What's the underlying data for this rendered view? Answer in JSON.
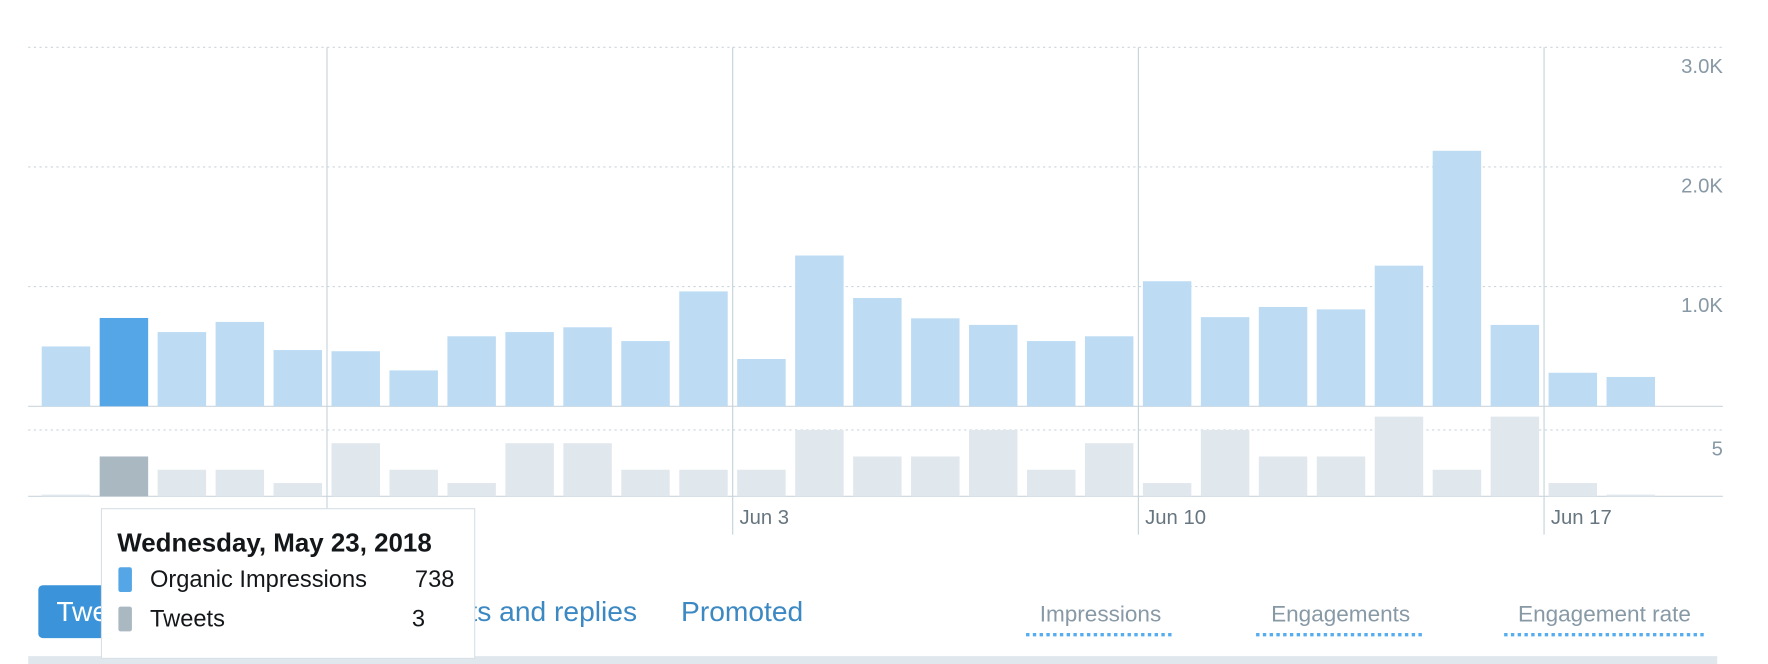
{
  "chart_data": [
    {
      "type": "bar",
      "name": "Organic Impressions",
      "color": "#bddcf4",
      "highlight": 1,
      "highlight_color": "#55a6e6",
      "categories": [
        null,
        null,
        null,
        null,
        null,
        null,
        null,
        null,
        null,
        null,
        null,
        null,
        "Jun 3",
        null,
        null,
        null,
        null,
        null,
        null,
        "Jun 10",
        null,
        null,
        null,
        null,
        null,
        null,
        "Jun 17",
        null
      ],
      "values": [
        500,
        738,
        620,
        705,
        470,
        460,
        300,
        585,
        620,
        660,
        545,
        960,
        395,
        1260,
        905,
        735,
        680,
        545,
        585,
        1045,
        745,
        830,
        810,
        1175,
        2135,
        680,
        280,
        245
      ],
      "ylim": [
        0,
        3000
      ],
      "yticks": [
        {
          "value": 1000,
          "label": "1.0K"
        },
        {
          "value": 2000,
          "label": "2.0K"
        },
        {
          "value": 3000,
          "label": "3.0K"
        }
      ],
      "grid": true
    },
    {
      "type": "bar",
      "name": "Tweets",
      "color": "#e1e8ed",
      "highlight": 1,
      "highlight_color": "#aab8c2",
      "values": [
        0,
        3,
        2,
        2,
        1,
        4,
        2,
        1,
        4,
        4,
        2,
        2,
        2,
        5,
        3,
        3,
        5,
        2,
        4,
        1,
        5,
        3,
        3,
        6,
        2,
        6,
        1,
        0
      ],
      "ylim": [
        0,
        6
      ],
      "yticks": [
        5
      ],
      "grid": true
    }
  ],
  "tooltip": {
    "title": "Wednesday, May 23, 2018",
    "rows": [
      {
        "label": "Organic Impressions",
        "value": 738,
        "color": "#55a6e6"
      },
      {
        "label": "Tweets",
        "value": 3,
        "color": "#aab8c2"
      }
    ]
  },
  "tabs": [
    "Tweets",
    "Tweets and replies",
    "Promoted"
  ],
  "metric_tabs": [
    "Impressions",
    "Engagements",
    "Engagement rate"
  ]
}
